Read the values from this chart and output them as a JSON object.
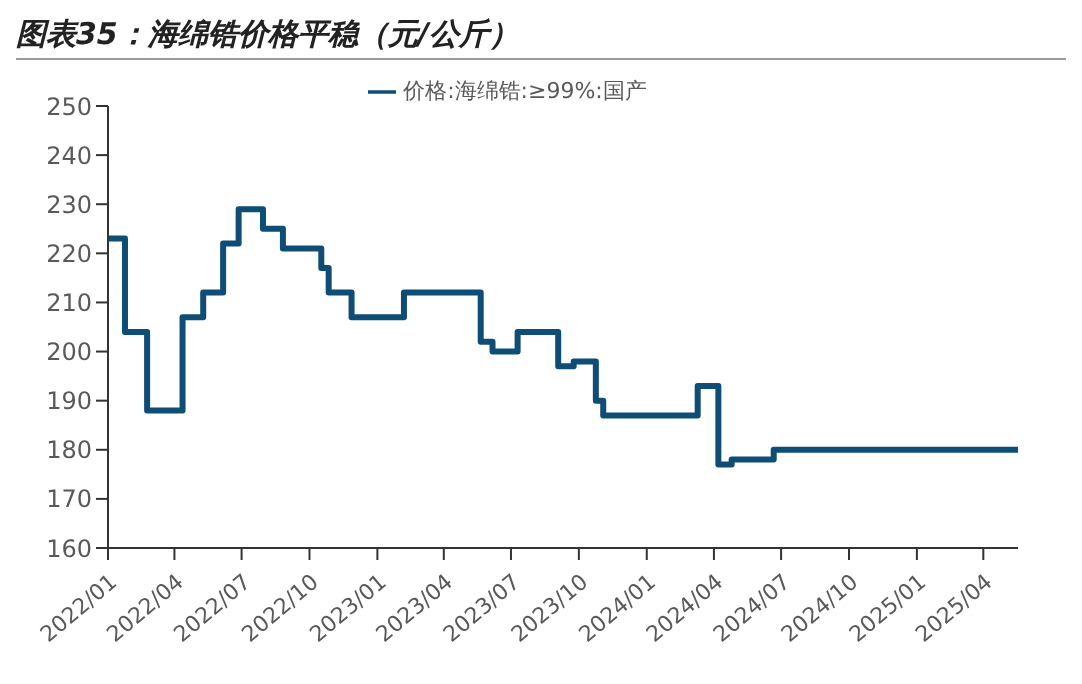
{
  "chart_data": {
    "type": "step",
    "title": "图表35：海绵锆价格平稳（元/公斤）",
    "x": [
      "2022-01-01",
      "2022-01-24",
      "2022-02-23",
      "2022-04-12",
      "2022-05-10",
      "2022-06-06",
      "2022-06-27",
      "2022-07-30",
      "2022-08-26",
      "2022-10-17",
      "2022-10-27",
      "2022-11-27",
      "2023-02-06",
      "2023-05-21",
      "2023-06-06",
      "2023-07-10",
      "2023-09-03",
      "2023-09-24",
      "2023-10-24",
      "2023-11-03",
      "2024-03-10",
      "2024-04-07",
      "2024-04-25",
      "2024-06-21",
      "2025-05-18"
    ],
    "series": [
      {
        "name": "价格:海绵锆:≥99%:国产",
        "color": "#0e4d75",
        "values": [
          223,
          204,
          188,
          207,
          212,
          222,
          229,
          225,
          221,
          217,
          212,
          207,
          212,
          202,
          200,
          204,
          197,
          198,
          190,
          187,
          193,
          177,
          178,
          180,
          180
        ]
      }
    ],
    "xlim": [
      "2022-01-01",
      "2025-05-18"
    ],
    "xticks": [
      {
        "value": "2022-01-01",
        "label": "2022/01"
      },
      {
        "value": "2022-04-01",
        "label": "2022/04"
      },
      {
        "value": "2022-07-01",
        "label": "2022/07"
      },
      {
        "value": "2022-10-01",
        "label": "2022/10"
      },
      {
        "value": "2023-01-01",
        "label": "2023/01"
      },
      {
        "value": "2023-04-01",
        "label": "2023/04"
      },
      {
        "value": "2023-07-01",
        "label": "2023/07"
      },
      {
        "value": "2023-10-01",
        "label": "2023/10"
      },
      {
        "value": "2024-01-01",
        "label": "2024/01"
      },
      {
        "value": "2024-04-01",
        "label": "2024/04"
      },
      {
        "value": "2024-07-01",
        "label": "2024/07"
      },
      {
        "value": "2024-10-01",
        "label": "2024/10"
      },
      {
        "value": "2025-01-01",
        "label": "2025/01"
      },
      {
        "value": "2025-04-01",
        "label": "2025/04"
      }
    ],
    "ylim": [
      160,
      250
    ],
    "yticks": [
      160,
      170,
      180,
      190,
      200,
      210,
      220,
      230,
      240,
      250
    ],
    "grid": false,
    "legend": "top",
    "marker": "none",
    "line_style": "solid"
  }
}
